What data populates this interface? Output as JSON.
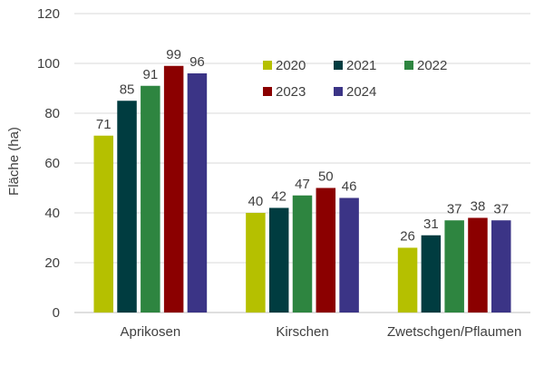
{
  "chart_data": {
    "type": "bar",
    "title": "",
    "xlabel": "",
    "ylabel": "Fläche (ha)",
    "ylim": [
      0,
      120
    ],
    "yticks": [
      0,
      20,
      40,
      60,
      80,
      100,
      120
    ],
    "grid": true,
    "legend_position": "top-right",
    "categories": [
      "Aprikosen",
      "Kirschen",
      "Zwetschgen/Pflaumen"
    ],
    "series": [
      {
        "name": "2020",
        "color": "#b5c000",
        "values": [
          71,
          40,
          26
        ]
      },
      {
        "name": "2021",
        "color": "#003c40",
        "values": [
          85,
          42,
          31
        ]
      },
      {
        "name": "2022",
        "color": "#2e8540",
        "values": [
          91,
          47,
          37
        ]
      },
      {
        "name": "2023",
        "color": "#8b0000",
        "values": [
          99,
          50,
          38
        ]
      },
      {
        "name": "2024",
        "color": "#3b3486",
        "values": [
          96,
          46,
          37
        ]
      }
    ]
  }
}
